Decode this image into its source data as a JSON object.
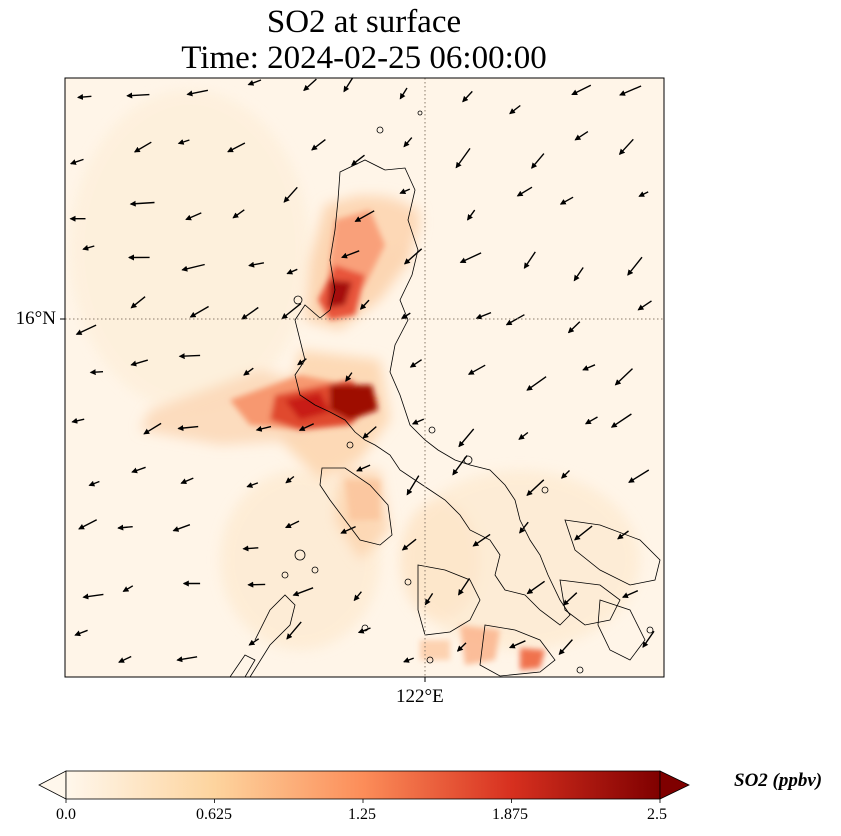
{
  "figure": {
    "title_line1": "SO2 at surface",
    "title_line2": "Time: 2024-02-25 06:00:00"
  },
  "map": {
    "gridlines": {
      "lat_label": "16°N",
      "lon_label": "122°E",
      "style": "dotted"
    },
    "overlays": [
      "concentration-field",
      "wind-vectors",
      "coastlines"
    ]
  },
  "colorbar": {
    "label": "SO2 (ppbv)",
    "ticks": [
      "0.0",
      "0.625",
      "1.25",
      "1.875",
      "2.5"
    ],
    "min": 0.0,
    "max": 2.5,
    "colormap": "OrRd",
    "colors": [
      "#fff7ec",
      "#fdd49e",
      "#fc8d59",
      "#d7301f",
      "#7f0000"
    ],
    "extend": "both"
  }
}
